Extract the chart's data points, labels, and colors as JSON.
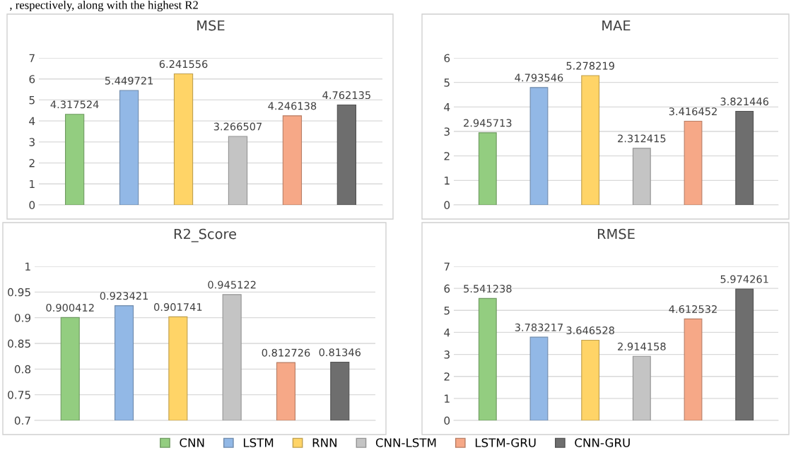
{
  "chart_data": [
    {
      "type": "bar",
      "title": "MSE",
      "categories": [
        null
      ],
      "ylim": [
        0,
        7
      ],
      "yticks": [
        0,
        1,
        2,
        3,
        4,
        5,
        6,
        7
      ],
      "grid": "y",
      "data_labels": true,
      "legend": "bottom",
      "annotations": [
        ", respectively, along with the highest R2"
      ],
      "series": [
        {
          "name": "CNN",
          "color": "#93cd80",
          "values": [
            4.317524
          ]
        },
        {
          "name": "LSTM",
          "color": "#92b8e6",
          "values": [
            5.449721
          ]
        },
        {
          "name": "RNN",
          "color": "#ffd467",
          "values": [
            6.241556
          ]
        },
        {
          "name": "CNN-LSTM",
          "color": "#c4c4c4",
          "values": [
            3.266507
          ]
        },
        {
          "name": "LSTM-GRU",
          "color": "#f6a887",
          "values": [
            4.246138
          ]
        },
        {
          "name": "CNN-GRU",
          "color": "#6e6e6e",
          "values": [
            4.762135
          ]
        }
      ]
    },
    {
      "type": "bar",
      "title": "MAE",
      "categories": [
        null
      ],
      "ylim": [
        0,
        6
      ],
      "yticks": [
        0,
        1,
        2,
        3,
        4,
        5,
        6
      ],
      "grid": "y",
      "data_labels": true,
      "series": [
        {
          "color": "#93cd80",
          "values": [
            2.945713
          ]
        },
        {
          "color": "#92b8e6",
          "values": [
            4.793546
          ]
        },
        {
          "color": "#ffd467",
          "values": [
            5.278219
          ]
        },
        {
          "color": "#c4c4c4",
          "values": [
            2.312415
          ]
        },
        {
          "color": "#f6a887",
          "values": [
            3.416452
          ]
        },
        {
          "color": "#6e6e6e",
          "values": [
            3.821446
          ]
        }
      ]
    },
    {
      "type": "bar",
      "title": "R2_Score",
      "categories": [
        null
      ],
      "ylim": [
        0.7,
        1
      ],
      "yticks": [
        0.7,
        0.75,
        0.8,
        0.85,
        0.9,
        0.95,
        1
      ],
      "grid": "y",
      "data_labels": true,
      "series": [
        {
          "color": "#93cd80",
          "values": [
            0.900412
          ]
        },
        {
          "color": "#92b8e6",
          "values": [
            0.923421
          ]
        },
        {
          "color": "#ffd467",
          "values": [
            0.901741
          ]
        },
        {
          "color": "#c4c4c4",
          "values": [
            0.945122
          ]
        },
        {
          "color": "#f6a887",
          "values": [
            0.812726
          ]
        },
        {
          "color": "#6e6e6e",
          "values": [
            0.81346
          ]
        }
      ]
    },
    {
      "type": "bar",
      "title": "RMSE",
      "categories": [
        null
      ],
      "ylim": [
        0,
        7
      ],
      "yticks": [
        0,
        1,
        2,
        3,
        4,
        5,
        6,
        7
      ],
      "grid": "y",
      "data_labels": true,
      "series": [
        {
          "color": "#93cd80",
          "values": [
            5.541238
          ]
        },
        {
          "color": "#92b8e6",
          "values": [
            3.783217
          ]
        },
        {
          "color": "#ffd467",
          "values": [
            3.646528
          ]
        },
        {
          "color": "#c4c4c4",
          "values": [
            2.914158
          ]
        },
        {
          "color": "#f6a887",
          "values": [
            4.612532
          ]
        },
        {
          "color": "#6e6e6e",
          "values": [
            5.974261
          ]
        }
      ]
    }
  ]
}
